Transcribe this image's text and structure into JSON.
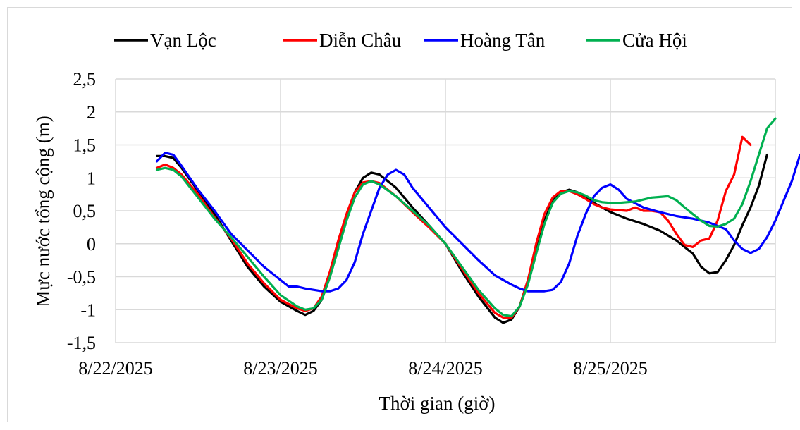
{
  "chart_data": {
    "type": "line",
    "xlabel": "Thời gian (giờ)",
    "ylabel": "Mực nước tổng cộng (m)",
    "x_ticks": [
      "8/22/2025",
      "8/23/2025",
      "8/24/2025",
      "8/25/2025"
    ],
    "y_ticks": [
      "2,5",
      "2",
      "1,5",
      "1",
      "0,5",
      "0",
      "-0,5",
      "-1",
      "-1,5"
    ],
    "ylim": [
      -1.5,
      2.5
    ],
    "xlim_days": [
      0,
      4
    ],
    "grid": true,
    "legend_position": "top",
    "series": [
      {
        "name": "Vạn Lộc",
        "color": "#000000",
        "points": [
          [
            0.25,
            1.33
          ],
          [
            0.3,
            1.33
          ],
          [
            0.35,
            1.3
          ],
          [
            0.4,
            1.15
          ],
          [
            0.5,
            0.8
          ],
          [
            0.6,
            0.45
          ],
          [
            0.7,
            0.05
          ],
          [
            0.8,
            -0.35
          ],
          [
            0.9,
            -0.65
          ],
          [
            1.0,
            -0.88
          ],
          [
            1.1,
            -1.02
          ],
          [
            1.15,
            -1.08
          ],
          [
            1.2,
            -1.02
          ],
          [
            1.25,
            -0.85
          ],
          [
            1.3,
            -0.5
          ],
          [
            1.35,
            -0.05
          ],
          [
            1.4,
            0.4
          ],
          [
            1.45,
            0.78
          ],
          [
            1.5,
            1.0
          ],
          [
            1.55,
            1.08
          ],
          [
            1.6,
            1.05
          ],
          [
            1.7,
            0.85
          ],
          [
            1.8,
            0.55
          ],
          [
            1.9,
            0.28
          ],
          [
            2.0,
            0.0
          ],
          [
            2.1,
            -0.42
          ],
          [
            2.2,
            -0.8
          ],
          [
            2.3,
            -1.12
          ],
          [
            2.35,
            -1.2
          ],
          [
            2.4,
            -1.15
          ],
          [
            2.45,
            -0.95
          ],
          [
            2.5,
            -0.55
          ],
          [
            2.55,
            -0.1
          ],
          [
            2.6,
            0.35
          ],
          [
            2.65,
            0.65
          ],
          [
            2.7,
            0.78
          ],
          [
            2.75,
            0.82
          ],
          [
            2.8,
            0.78
          ],
          [
            2.85,
            0.72
          ],
          [
            2.9,
            0.62
          ],
          [
            3.0,
            0.48
          ],
          [
            3.1,
            0.38
          ],
          [
            3.2,
            0.3
          ],
          [
            3.3,
            0.2
          ],
          [
            3.4,
            0.05
          ],
          [
            3.5,
            -0.15
          ],
          [
            3.55,
            -0.35
          ],
          [
            3.6,
            -0.45
          ],
          [
            3.65,
            -0.43
          ],
          [
            3.7,
            -0.25
          ],
          [
            3.75,
            -0.02
          ],
          [
            3.8,
            0.28
          ],
          [
            3.85,
            0.55
          ],
          [
            3.9,
            0.88
          ],
          [
            3.95,
            1.35
          ]
        ]
      },
      {
        "name": "Diễn Châu",
        "color": "#ff0000",
        "points": [
          [
            0.25,
            1.15
          ],
          [
            0.3,
            1.2
          ],
          [
            0.35,
            1.15
          ],
          [
            0.4,
            1.05
          ],
          [
            0.5,
            0.75
          ],
          [
            0.6,
            0.4
          ],
          [
            0.7,
            0.08
          ],
          [
            0.8,
            -0.3
          ],
          [
            0.9,
            -0.6
          ],
          [
            1.0,
            -0.85
          ],
          [
            1.1,
            -0.98
          ],
          [
            1.15,
            -1.02
          ],
          [
            1.2,
            -0.98
          ],
          [
            1.25,
            -0.8
          ],
          [
            1.3,
            -0.42
          ],
          [
            1.35,
            0.05
          ],
          [
            1.4,
            0.45
          ],
          [
            1.45,
            0.78
          ],
          [
            1.5,
            0.93
          ],
          [
            1.55,
            0.95
          ],
          [
            1.6,
            0.92
          ],
          [
            1.7,
            0.72
          ],
          [
            1.8,
            0.48
          ],
          [
            1.9,
            0.25
          ],
          [
            2.0,
            0.0
          ],
          [
            2.1,
            -0.38
          ],
          [
            2.2,
            -0.75
          ],
          [
            2.3,
            -1.05
          ],
          [
            2.35,
            -1.12
          ],
          [
            2.4,
            -1.12
          ],
          [
            2.45,
            -0.95
          ],
          [
            2.5,
            -0.55
          ],
          [
            2.55,
            0.0
          ],
          [
            2.6,
            0.45
          ],
          [
            2.65,
            0.7
          ],
          [
            2.7,
            0.8
          ],
          [
            2.75,
            0.8
          ],
          [
            2.8,
            0.75
          ],
          [
            2.85,
            0.68
          ],
          [
            2.9,
            0.6
          ],
          [
            2.95,
            0.55
          ],
          [
            3.0,
            0.52
          ],
          [
            3.1,
            0.5
          ],
          [
            3.15,
            0.55
          ],
          [
            3.2,
            0.5
          ],
          [
            3.25,
            0.5
          ],
          [
            3.3,
            0.48
          ],
          [
            3.35,
            0.35
          ],
          [
            3.4,
            0.15
          ],
          [
            3.45,
            -0.02
          ],
          [
            3.5,
            -0.05
          ],
          [
            3.55,
            0.05
          ],
          [
            3.6,
            0.08
          ],
          [
            3.65,
            0.35
          ],
          [
            3.7,
            0.8
          ],
          [
            3.75,
            1.05
          ],
          [
            3.8,
            1.62
          ],
          [
            3.85,
            1.5
          ]
        ]
      },
      {
        "name": "Hoàng Tân",
        "color": "#0000ff",
        "points": [
          [
            0.25,
            1.25
          ],
          [
            0.3,
            1.38
          ],
          [
            0.35,
            1.35
          ],
          [
            0.4,
            1.18
          ],
          [
            0.5,
            0.82
          ],
          [
            0.6,
            0.5
          ],
          [
            0.7,
            0.15
          ],
          [
            0.8,
            -0.1
          ],
          [
            0.9,
            -0.35
          ],
          [
            1.0,
            -0.55
          ],
          [
            1.05,
            -0.65
          ],
          [
            1.1,
            -0.65
          ],
          [
            1.15,
            -0.68
          ],
          [
            1.2,
            -0.7
          ],
          [
            1.25,
            -0.72
          ],
          [
            1.3,
            -0.72
          ],
          [
            1.35,
            -0.68
          ],
          [
            1.4,
            -0.55
          ],
          [
            1.45,
            -0.28
          ],
          [
            1.5,
            0.15
          ],
          [
            1.55,
            0.5
          ],
          [
            1.6,
            0.85
          ],
          [
            1.65,
            1.05
          ],
          [
            1.7,
            1.12
          ],
          [
            1.75,
            1.05
          ],
          [
            1.8,
            0.85
          ],
          [
            1.9,
            0.55
          ],
          [
            2.0,
            0.25
          ],
          [
            2.1,
            0.0
          ],
          [
            2.2,
            -0.25
          ],
          [
            2.3,
            -0.48
          ],
          [
            2.4,
            -0.62
          ],
          [
            2.45,
            -0.68
          ],
          [
            2.5,
            -0.72
          ],
          [
            2.55,
            -0.72
          ],
          [
            2.6,
            -0.72
          ],
          [
            2.65,
            -0.7
          ],
          [
            2.7,
            -0.58
          ],
          [
            2.75,
            -0.3
          ],
          [
            2.8,
            0.12
          ],
          [
            2.85,
            0.45
          ],
          [
            2.9,
            0.72
          ],
          [
            2.95,
            0.85
          ],
          [
            3.0,
            0.9
          ],
          [
            3.05,
            0.82
          ],
          [
            3.1,
            0.68
          ],
          [
            3.2,
            0.55
          ],
          [
            3.3,
            0.48
          ],
          [
            3.4,
            0.42
          ],
          [
            3.5,
            0.38
          ],
          [
            3.6,
            0.32
          ],
          [
            3.7,
            0.22
          ],
          [
            3.75,
            0.05
          ],
          [
            3.8,
            -0.08
          ],
          [
            3.85,
            -0.14
          ],
          [
            3.9,
            -0.08
          ],
          [
            3.95,
            0.1
          ],
          [
            4.0,
            0.35
          ],
          [
            4.05,
            0.65
          ],
          [
            4.1,
            0.95
          ],
          [
            4.15,
            1.35
          ]
        ]
      },
      {
        "name": "Cửa Hội",
        "color": "#00b050",
        "points": [
          [
            0.25,
            1.12
          ],
          [
            0.3,
            1.15
          ],
          [
            0.35,
            1.12
          ],
          [
            0.4,
            1.02
          ],
          [
            0.5,
            0.7
          ],
          [
            0.6,
            0.38
          ],
          [
            0.7,
            0.1
          ],
          [
            0.8,
            -0.2
          ],
          [
            0.9,
            -0.5
          ],
          [
            1.0,
            -0.78
          ],
          [
            1.1,
            -0.95
          ],
          [
            1.15,
            -1.0
          ],
          [
            1.2,
            -0.98
          ],
          [
            1.25,
            -0.85
          ],
          [
            1.3,
            -0.5
          ],
          [
            1.35,
            -0.08
          ],
          [
            1.4,
            0.35
          ],
          [
            1.45,
            0.7
          ],
          [
            1.5,
            0.9
          ],
          [
            1.55,
            0.95
          ],
          [
            1.6,
            0.9
          ],
          [
            1.7,
            0.72
          ],
          [
            1.8,
            0.5
          ],
          [
            1.9,
            0.28
          ],
          [
            2.0,
            0.0
          ],
          [
            2.1,
            -0.35
          ],
          [
            2.2,
            -0.7
          ],
          [
            2.3,
            -0.98
          ],
          [
            2.35,
            -1.08
          ],
          [
            2.4,
            -1.1
          ],
          [
            2.45,
            -0.95
          ],
          [
            2.5,
            -0.62
          ],
          [
            2.55,
            -0.15
          ],
          [
            2.6,
            0.3
          ],
          [
            2.65,
            0.62
          ],
          [
            2.7,
            0.76
          ],
          [
            2.75,
            0.8
          ],
          [
            2.8,
            0.78
          ],
          [
            2.85,
            0.73
          ],
          [
            2.9,
            0.66
          ],
          [
            2.95,
            0.63
          ],
          [
            3.0,
            0.62
          ],
          [
            3.05,
            0.62
          ],
          [
            3.1,
            0.63
          ],
          [
            3.15,
            0.64
          ],
          [
            3.2,
            0.67
          ],
          [
            3.25,
            0.7
          ],
          [
            3.3,
            0.71
          ],
          [
            3.35,
            0.72
          ],
          [
            3.4,
            0.66
          ],
          [
            3.45,
            0.55
          ],
          [
            3.5,
            0.45
          ],
          [
            3.55,
            0.35
          ],
          [
            3.6,
            0.27
          ],
          [
            3.65,
            0.26
          ],
          [
            3.7,
            0.3
          ],
          [
            3.75,
            0.38
          ],
          [
            3.8,
            0.6
          ],
          [
            3.85,
            0.95
          ],
          [
            3.9,
            1.35
          ],
          [
            3.95,
            1.75
          ],
          [
            4.0,
            1.9
          ]
        ]
      }
    ]
  }
}
